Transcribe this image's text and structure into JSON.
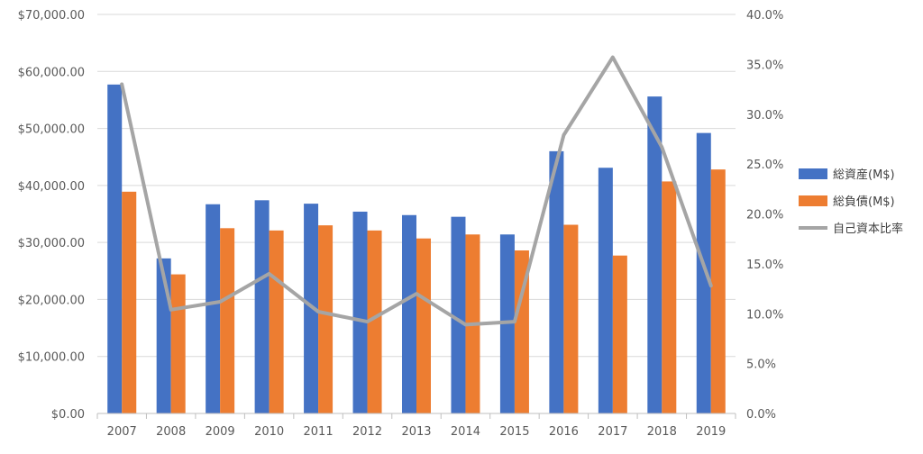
{
  "chart_data": {
    "type": "bar",
    "categories": [
      "2007",
      "2008",
      "2009",
      "2010",
      "2011",
      "2012",
      "2013",
      "2014",
      "2015",
      "2016",
      "2017",
      "2018",
      "2019"
    ],
    "series": [
      {
        "name": "総資産(M$)",
        "type": "bar",
        "axis": "left",
        "color": "#4472C4",
        "values": [
          57700,
          27200,
          36700,
          37400,
          36800,
          35400,
          34800,
          34500,
          31400,
          46000,
          43100,
          55600,
          49200
        ]
      },
      {
        "name": "総負債(M$)",
        "type": "bar",
        "axis": "left",
        "color": "#ED7D31",
        "values": [
          38900,
          24400,
          32500,
          32100,
          33000,
          32100,
          30700,
          31400,
          28600,
          33100,
          27700,
          40700,
          42800
        ]
      },
      {
        "name": "自己資本比率",
        "type": "line",
        "axis": "right",
        "color": "#A5A5A5",
        "values": [
          0.33,
          0.104,
          0.112,
          0.14,
          0.102,
          0.092,
          0.12,
          0.089,
          0.092,
          0.279,
          0.357,
          0.267,
          0.128
        ]
      }
    ],
    "y_left": {
      "ylim": [
        0,
        70000
      ],
      "ticks": [
        "$0.00",
        "$10,000.00",
        "$20,000.00",
        "$30,000.00",
        "$40,000.00",
        "$50,000.00",
        "$60,000.00",
        "$70,000.00"
      ]
    },
    "y_right": {
      "ylim": [
        0,
        0.4
      ],
      "ticks": [
        "0.0%",
        "5.0%",
        "10.0%",
        "15.0%",
        "20.0%",
        "25.0%",
        "30.0%",
        "35.0%",
        "40.0%"
      ]
    },
    "grid": true,
    "legend": "right"
  }
}
